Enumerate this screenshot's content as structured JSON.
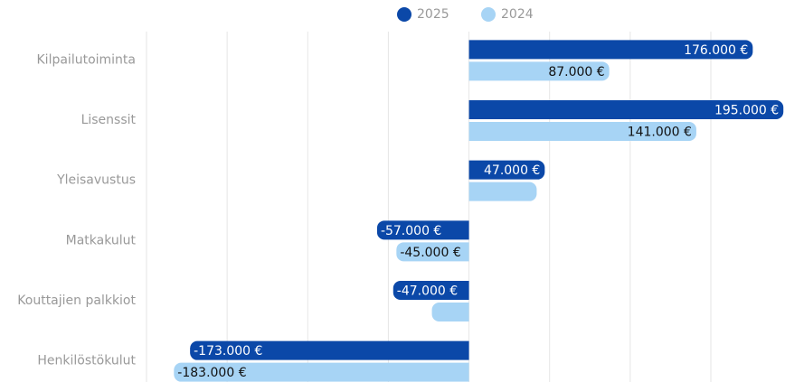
{
  "chart_data": {
    "type": "bar",
    "orientation": "horizontal",
    "categories": [
      "Kilpailutoiminta",
      "Lisenssit",
      "Yleisavustus",
      "Matkakulut",
      "Kouttajien palkkiot",
      "Henkilöstökulut"
    ],
    "series": [
      {
        "name": "2025",
        "color": "#0b48a8",
        "label_color": "#ffffff",
        "values": [
          176000,
          195000,
          47000,
          -57000,
          -47000,
          -173000
        ],
        "value_labels": [
          "176.000 €",
          "195.000 €",
          "47.000 €",
          "-57.000 €",
          "-47.000 €",
          "-173.000 €"
        ]
      },
      {
        "name": "2024",
        "color": "#a7d4f5",
        "label_color": "#111111",
        "values": [
          87000,
          141000,
          42000,
          -45000,
          -23000,
          -183000
        ],
        "value_labels": [
          "87.000 €",
          "141.000 €",
          null,
          "-45.000 €",
          null,
          "-183.000 €"
        ]
      }
    ],
    "xlim": [
      -200000,
      196000
    ],
    "xticks": [
      -200000,
      -150000,
      -100000,
      -50000,
      0,
      50000,
      100000,
      150000
    ],
    "grid": true,
    "legend": "top"
  }
}
